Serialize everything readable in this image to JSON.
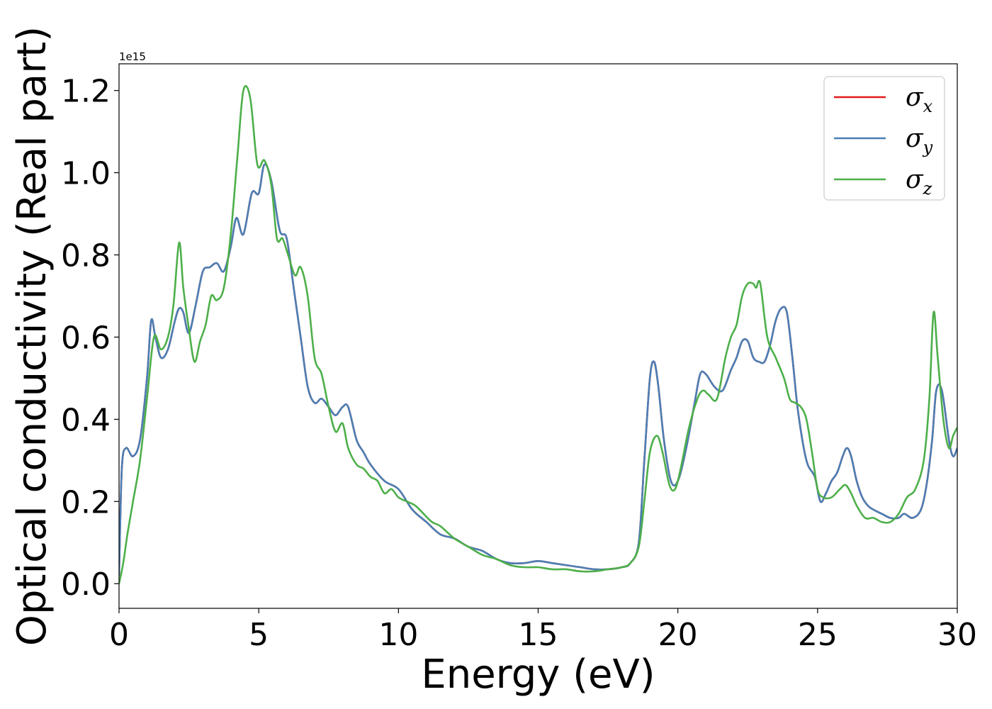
{
  "chart_data": {
    "type": "line",
    "xlabel": "Energy (eV)",
    "ylabel": "Optical conductivity (Real part)",
    "y_offset_text": "1e15",
    "xlim": [
      0,
      30
    ],
    "ylim": [
      -0.06,
      1.265
    ],
    "xticks": [
      0,
      5,
      10,
      15,
      20,
      25,
      30
    ],
    "xtick_labels": [
      "0",
      "5",
      "10",
      "15",
      "20",
      "25",
      "30"
    ],
    "yticks": [
      0.0,
      0.2,
      0.4,
      0.6,
      0.8,
      1.0,
      1.2
    ],
    "ytick_labels": [
      "0.0",
      "0.2",
      "0.4",
      "0.6",
      "0.8",
      "1.0",
      "1.2"
    ],
    "grid": false,
    "legend_position": "top-right",
    "series": [
      {
        "name": "σx",
        "symbol": "σ",
        "subscript": "x",
        "color": "#e41a1c",
        "x": [
          0,
          0.1,
          0.25,
          0.5,
          0.75,
          1.0,
          1.15,
          1.3,
          1.5,
          1.75,
          2.0,
          2.15,
          2.3,
          2.5,
          2.75,
          3.0,
          3.25,
          3.5,
          3.75,
          4.0,
          4.2,
          4.45,
          4.75,
          5.0,
          5.2,
          5.45,
          5.75,
          6.0,
          6.25,
          6.5,
          6.75,
          7.0,
          7.25,
          7.5,
          7.75,
          8.0,
          8.2,
          8.5,
          8.75,
          9.0,
          9.5,
          10.0,
          10.5,
          11.0,
          11.5,
          12.0,
          12.5,
          13.0,
          13.5,
          14.0,
          14.5,
          15.0,
          15.5,
          16.0,
          16.5,
          17.0,
          17.5,
          18.0,
          18.3,
          18.6,
          18.8,
          19.0,
          19.15,
          19.3,
          19.5,
          19.75,
          20.0,
          20.3,
          20.6,
          20.8,
          21.0,
          21.3,
          21.6,
          21.9,
          22.1,
          22.3,
          22.5,
          22.7,
          22.9,
          23.1,
          23.3,
          23.5,
          23.7,
          23.9,
          24.1,
          24.3,
          24.6,
          24.9,
          25.1,
          25.3,
          25.5,
          25.7,
          25.9,
          26.05,
          26.2,
          26.4,
          26.6,
          26.8,
          27.0,
          27.3,
          27.6,
          27.9,
          28.1,
          28.4,
          28.7,
          28.9,
          29.1,
          29.25,
          29.45,
          29.7,
          29.85,
          30.0
        ],
        "y": [
          0.02,
          0.28,
          0.33,
          0.31,
          0.35,
          0.5,
          0.64,
          0.6,
          0.55,
          0.57,
          0.64,
          0.67,
          0.66,
          0.61,
          0.68,
          0.76,
          0.77,
          0.78,
          0.76,
          0.82,
          0.89,
          0.85,
          0.95,
          0.95,
          1.02,
          0.98,
          0.86,
          0.84,
          0.72,
          0.6,
          0.48,
          0.44,
          0.45,
          0.43,
          0.41,
          0.43,
          0.43,
          0.35,
          0.32,
          0.29,
          0.25,
          0.23,
          0.18,
          0.15,
          0.12,
          0.11,
          0.09,
          0.08,
          0.06,
          0.05,
          0.05,
          0.055,
          0.05,
          0.045,
          0.04,
          0.035,
          0.035,
          0.04,
          0.05,
          0.1,
          0.3,
          0.5,
          0.54,
          0.48,
          0.35,
          0.25,
          0.25,
          0.33,
          0.44,
          0.51,
          0.51,
          0.48,
          0.47,
          0.52,
          0.55,
          0.59,
          0.59,
          0.55,
          0.54,
          0.54,
          0.58,
          0.64,
          0.67,
          0.66,
          0.55,
          0.42,
          0.3,
          0.26,
          0.2,
          0.22,
          0.25,
          0.27,
          0.31,
          0.33,
          0.31,
          0.25,
          0.21,
          0.19,
          0.18,
          0.17,
          0.16,
          0.16,
          0.17,
          0.16,
          0.18,
          0.24,
          0.35,
          0.47,
          0.47,
          0.35,
          0.31,
          0.33
        ]
      },
      {
        "name": "σy",
        "symbol": "σ",
        "subscript": "y",
        "color": "#4a7fb5",
        "x": [
          0,
          0.1,
          0.25,
          0.5,
          0.75,
          1.0,
          1.15,
          1.3,
          1.5,
          1.75,
          2.0,
          2.15,
          2.3,
          2.5,
          2.75,
          3.0,
          3.25,
          3.5,
          3.75,
          4.0,
          4.2,
          4.45,
          4.75,
          5.0,
          5.2,
          5.45,
          5.75,
          6.0,
          6.25,
          6.5,
          6.75,
          7.0,
          7.25,
          7.5,
          7.75,
          8.0,
          8.2,
          8.5,
          8.75,
          9.0,
          9.5,
          10.0,
          10.5,
          11.0,
          11.5,
          12.0,
          12.5,
          13.0,
          13.5,
          14.0,
          14.5,
          15.0,
          15.5,
          16.0,
          16.5,
          17.0,
          17.5,
          18.0,
          18.3,
          18.6,
          18.8,
          19.0,
          19.15,
          19.3,
          19.5,
          19.75,
          20.0,
          20.3,
          20.6,
          20.8,
          21.0,
          21.3,
          21.6,
          21.9,
          22.1,
          22.3,
          22.5,
          22.7,
          22.9,
          23.1,
          23.3,
          23.5,
          23.7,
          23.9,
          24.1,
          24.3,
          24.6,
          24.9,
          25.1,
          25.3,
          25.5,
          25.7,
          25.9,
          26.05,
          26.2,
          26.4,
          26.6,
          26.8,
          27.0,
          27.3,
          27.6,
          27.9,
          28.1,
          28.4,
          28.7,
          28.9,
          29.1,
          29.25,
          29.45,
          29.7,
          29.85,
          30.0
        ],
        "y": [
          0.02,
          0.28,
          0.33,
          0.31,
          0.35,
          0.5,
          0.64,
          0.6,
          0.55,
          0.57,
          0.64,
          0.67,
          0.66,
          0.61,
          0.68,
          0.76,
          0.77,
          0.78,
          0.76,
          0.82,
          0.89,
          0.85,
          0.95,
          0.95,
          1.02,
          0.98,
          0.86,
          0.84,
          0.72,
          0.6,
          0.48,
          0.44,
          0.45,
          0.43,
          0.41,
          0.43,
          0.43,
          0.35,
          0.32,
          0.29,
          0.25,
          0.23,
          0.18,
          0.15,
          0.12,
          0.11,
          0.09,
          0.08,
          0.06,
          0.05,
          0.05,
          0.055,
          0.05,
          0.045,
          0.04,
          0.035,
          0.035,
          0.04,
          0.05,
          0.1,
          0.3,
          0.5,
          0.54,
          0.48,
          0.35,
          0.25,
          0.25,
          0.33,
          0.44,
          0.51,
          0.51,
          0.48,
          0.47,
          0.52,
          0.55,
          0.59,
          0.59,
          0.55,
          0.54,
          0.54,
          0.58,
          0.64,
          0.67,
          0.66,
          0.55,
          0.42,
          0.3,
          0.26,
          0.2,
          0.22,
          0.25,
          0.27,
          0.31,
          0.33,
          0.31,
          0.25,
          0.21,
          0.19,
          0.18,
          0.17,
          0.16,
          0.16,
          0.17,
          0.16,
          0.18,
          0.24,
          0.35,
          0.47,
          0.47,
          0.35,
          0.31,
          0.33
        ]
      },
      {
        "name": "σz",
        "symbol": "σ",
        "subscript": "z",
        "color": "#4daf4a",
        "x": [
          0,
          0.15,
          0.3,
          0.5,
          0.75,
          1.0,
          1.25,
          1.5,
          1.75,
          1.95,
          2.15,
          2.3,
          2.5,
          2.7,
          2.9,
          3.1,
          3.3,
          3.5,
          3.75,
          4.0,
          4.25,
          4.45,
          4.7,
          4.95,
          5.2,
          5.45,
          5.65,
          5.85,
          6.05,
          6.3,
          6.5,
          6.75,
          7.0,
          7.25,
          7.5,
          7.75,
          8.0,
          8.2,
          8.5,
          8.75,
          9.0,
          9.25,
          9.5,
          9.75,
          10.0,
          10.3,
          10.6,
          10.9,
          11.2,
          11.5,
          12.0,
          12.5,
          13.0,
          13.5,
          14.0,
          14.5,
          15.0,
          15.5,
          16.0,
          16.5,
          17.0,
          17.5,
          18.0,
          18.3,
          18.6,
          18.8,
          19.0,
          19.25,
          19.45,
          19.7,
          19.9,
          20.1,
          20.4,
          20.7,
          20.9,
          21.1,
          21.4,
          21.7,
          21.9,
          22.1,
          22.3,
          22.5,
          22.7,
          22.8,
          22.95,
          23.2,
          23.5,
          23.8,
          24.0,
          24.2,
          24.4,
          24.6,
          24.8,
          25.0,
          25.2,
          25.5,
          25.8,
          26.0,
          26.2,
          26.4,
          26.7,
          27.0,
          27.3,
          27.6,
          27.9,
          28.2,
          28.5,
          28.8,
          29.0,
          29.15,
          29.3,
          29.5,
          29.7,
          29.85,
          30.0
        ],
        "y": [
          0.0,
          0.05,
          0.12,
          0.2,
          0.3,
          0.45,
          0.6,
          0.57,
          0.6,
          0.68,
          0.83,
          0.72,
          0.62,
          0.54,
          0.59,
          0.63,
          0.7,
          0.69,
          0.72,
          0.85,
          1.05,
          1.2,
          1.18,
          1.02,
          1.03,
          0.97,
          0.84,
          0.84,
          0.8,
          0.75,
          0.77,
          0.7,
          0.55,
          0.51,
          0.43,
          0.37,
          0.39,
          0.33,
          0.29,
          0.28,
          0.26,
          0.25,
          0.22,
          0.23,
          0.21,
          0.2,
          0.19,
          0.17,
          0.15,
          0.14,
          0.11,
          0.09,
          0.07,
          0.06,
          0.045,
          0.04,
          0.04,
          0.035,
          0.035,
          0.03,
          0.03,
          0.035,
          0.04,
          0.05,
          0.09,
          0.2,
          0.32,
          0.36,
          0.32,
          0.24,
          0.23,
          0.28,
          0.38,
          0.45,
          0.47,
          0.46,
          0.45,
          0.55,
          0.6,
          0.63,
          0.7,
          0.73,
          0.73,
          0.72,
          0.73,
          0.6,
          0.55,
          0.5,
          0.45,
          0.44,
          0.43,
          0.4,
          0.32,
          0.23,
          0.21,
          0.21,
          0.23,
          0.24,
          0.22,
          0.19,
          0.16,
          0.16,
          0.15,
          0.15,
          0.17,
          0.21,
          0.23,
          0.3,
          0.45,
          0.66,
          0.55,
          0.4,
          0.33,
          0.36,
          0.38
        ]
      }
    ]
  }
}
